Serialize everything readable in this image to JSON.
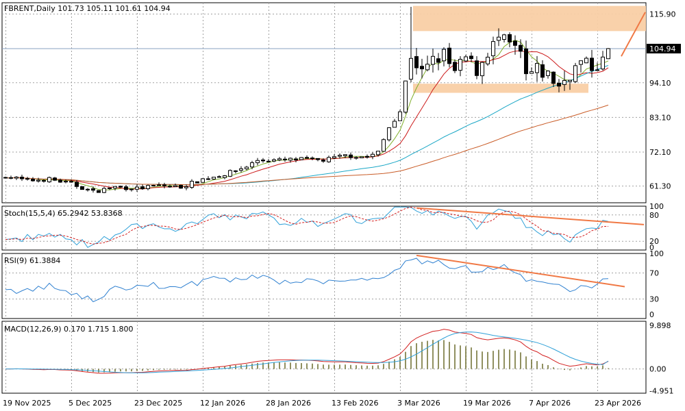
{
  "chart_data": {
    "type": "candlestick",
    "symbol": "FBRENT",
    "timeframe": "Daily",
    "panels": {
      "price": {
        "header": "FBRENT,Daily  101.73 105.11 101.61 104.94",
        "ohlc_last": {
          "open": 101.73,
          "high": 105.11,
          "low": 101.61,
          "close": 104.94
        },
        "current_price_label": "104.94",
        "y_ticks": [
          "115.90",
          "94.10",
          "83.10",
          "72.10",
          "61.30"
        ],
        "ylim": [
          56.0,
          119.5
        ],
        "y_tick_values": [
          115.9,
          94.1,
          83.1,
          72.1,
          61.3
        ],
        "current_price": 104.94,
        "resistance_zone": [
          110.5,
          118.5
        ],
        "support_zone": [
          90.9,
          93.8
        ],
        "moving_averages": [
          {
            "color": "#7fae2a"
          },
          {
            "color": "#cc1a1a"
          },
          {
            "color": "#1aa7c6"
          },
          {
            "color": "#c95b26"
          }
        ]
      },
      "stochastic": {
        "header": "Stoch(15,5,4) 65.2942 53.8368",
        "main": 65.2942,
        "signal": 53.8368,
        "y_ticks": [
          "100",
          "80",
          "20",
          "0"
        ],
        "ylim": [
          0,
          100
        ]
      },
      "rsi": {
        "header": "RSI(9) 61.3884",
        "value": 61.3884,
        "y_ticks": [
          "100",
          "70",
          "30",
          "0"
        ],
        "ylim": [
          0,
          100
        ]
      },
      "macd": {
        "header": "MACD(12,26,9) 0.170 1.715 1.800",
        "histogram": 0.17,
        "macd": 1.715,
        "signal": 1.8,
        "y_ticks": [
          "9.898",
          "0.00",
          "-4.951"
        ],
        "ylim": [
          -5.5,
          10.8
        ]
      }
    },
    "x_labels": [
      "19 Nov 2025",
      "5 Dec 2025",
      "23 Dec 2025",
      "12 Jan 2026",
      "28 Jan 2026",
      "13 Feb 2026",
      "3 Mar 2026",
      "19 Mar 2026",
      "7 Apr 2026",
      "23 Apr 2026"
    ],
    "x_label_bars": [
      0,
      12,
      24,
      36,
      48,
      60,
      72,
      84,
      96,
      108
    ],
    "anchors": [
      [
        0,
        64.5,
        20,
        44
      ],
      [
        4,
        63.0,
        28,
        42
      ],
      [
        8,
        63.5,
        35,
        50
      ],
      [
        12,
        62.0,
        22,
        38
      ],
      [
        16,
        59.5,
        8,
        28
      ],
      [
        20,
        61.0,
        40,
        45
      ],
      [
        24,
        60.5,
        55,
        52
      ],
      [
        28,
        61.5,
        50,
        50
      ],
      [
        32,
        61.0,
        45,
        48
      ],
      [
        36,
        63.5,
        75,
        58
      ],
      [
        40,
        65.0,
        80,
        62
      ],
      [
        44,
        67.5,
        70,
        58
      ],
      [
        46,
        69.5,
        85,
        66
      ],
      [
        50,
        69.5,
        60,
        56
      ],
      [
        54,
        69.8,
        70,
        60
      ],
      [
        58,
        69.5,
        55,
        56
      ],
      [
        62,
        71.0,
        75,
        62
      ],
      [
        66,
        70.5,
        65,
        60
      ],
      [
        68,
        72.0,
        70,
        62
      ],
      [
        70,
        80.0,
        92,
        72
      ],
      [
        72,
        85.0,
        96,
        80
      ],
      [
        74,
        103.0,
        98,
        92
      ],
      [
        76,
        97.0,
        80,
        86
      ],
      [
        78,
        101.0,
        88,
        88
      ],
      [
        80,
        103.0,
        85,
        84
      ],
      [
        82,
        97.0,
        70,
        76
      ],
      [
        84,
        102.0,
        80,
        80
      ],
      [
        86,
        98.0,
        55,
        70
      ],
      [
        88,
        104.0,
        78,
        78
      ],
      [
        90,
        108.0,
        85,
        80
      ],
      [
        92,
        106.0,
        82,
        78
      ],
      [
        94,
        103.0,
        70,
        72
      ],
      [
        95,
        96.0,
        50,
        60
      ],
      [
        97,
        98.0,
        40,
        56
      ],
      [
        99,
        96.5,
        42,
        55
      ],
      [
        101,
        93.0,
        30,
        48
      ],
      [
        103,
        97.0,
        25,
        44
      ],
      [
        105,
        100.5,
        35,
        48
      ],
      [
        107,
        99.0,
        45,
        52
      ],
      [
        109,
        101.0,
        60,
        56
      ],
      [
        110,
        104.94,
        65,
        61
      ]
    ]
  }
}
